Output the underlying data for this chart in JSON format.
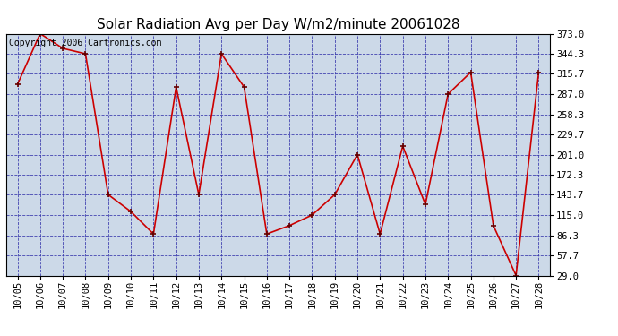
{
  "title": "Solar Radiation Avg per Day W/m2/minute 20061028",
  "copyright_text": "Copyright 2006 Cartronics.com",
  "dates": [
    "10/05",
    "10/06",
    "10/07",
    "10/08",
    "10/09",
    "10/10",
    "10/11",
    "10/12",
    "10/13",
    "10/14",
    "10/15",
    "10/16",
    "10/17",
    "10/18",
    "10/19",
    "10/20",
    "10/21",
    "10/22",
    "10/23",
    "10/24",
    "10/25",
    "10/26",
    "10/27",
    "10/28"
  ],
  "values": [
    301.0,
    373.0,
    352.0,
    344.3,
    144.0,
    120.0,
    88.0,
    297.0,
    144.0,
    344.3,
    297.0,
    88.0,
    100.0,
    115.0,
    144.0,
    201.0,
    88.0,
    213.0,
    130.0,
    287.0,
    318.0,
    100.0,
    29.0,
    318.0
  ],
  "y_ticks": [
    29.0,
    57.7,
    86.3,
    115.0,
    143.7,
    172.3,
    201.0,
    229.7,
    258.3,
    287.0,
    315.7,
    344.3,
    373.0
  ],
  "ylim": [
    29.0,
    373.0
  ],
  "line_color": "#cc0000",
  "marker_color": "#cc0000",
  "marker_edge_color": "#660000",
  "bg_color": "#ccd9e8",
  "grid_color": "#3333aa",
  "title_fontsize": 11,
  "tick_fontsize": 7.5,
  "copyright_fontsize": 7
}
